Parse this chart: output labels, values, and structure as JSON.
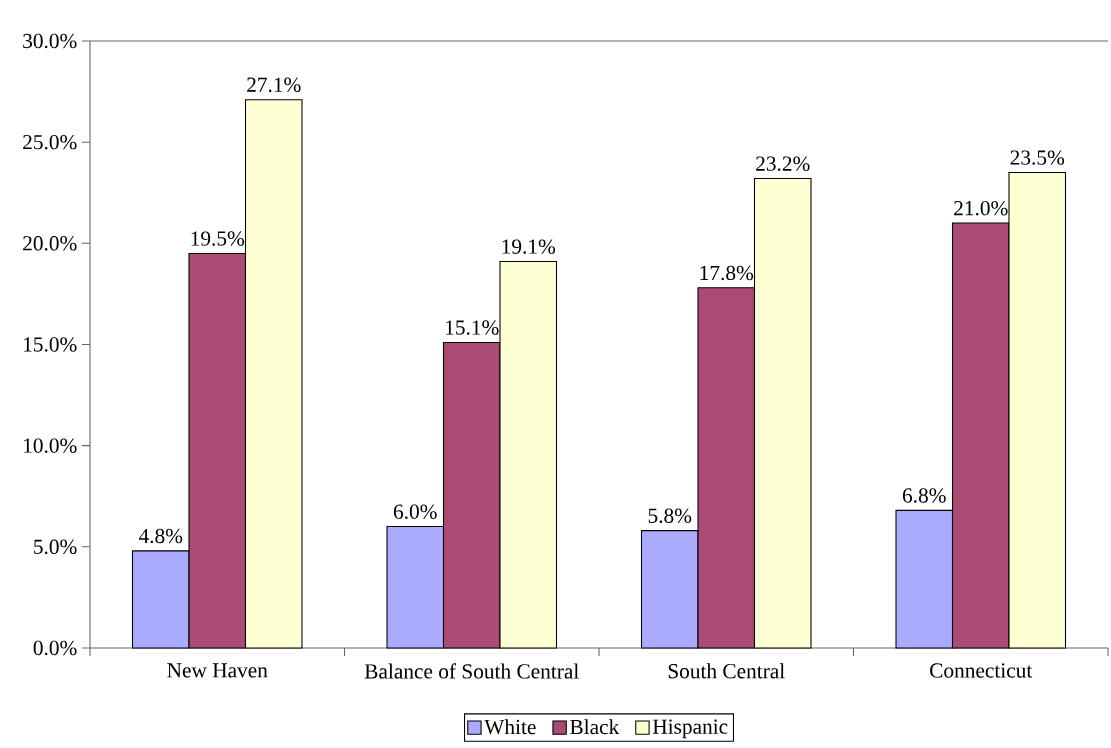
{
  "chart_data": {
    "type": "bar",
    "categories": [
      "New Haven",
      "Balance of South Central",
      "South Central",
      "Connecticut"
    ],
    "series": [
      {
        "name": "White",
        "color": "#aaaaff",
        "values": [
          4.8,
          6.0,
          5.8,
          6.8
        ],
        "value_labels": [
          "4.8%",
          "6.0%",
          "5.8%",
          "6.8%"
        ]
      },
      {
        "name": "Black",
        "color": "#aa4a75",
        "values": [
          19.5,
          15.1,
          17.8,
          21.0
        ],
        "value_labels": [
          "19.5%",
          "15.1%",
          "17.8%",
          "21.0%"
        ]
      },
      {
        "name": "Hispanic",
        "color": "#ffffd4",
        "values": [
          27.1,
          19.1,
          23.2,
          23.5
        ],
        "value_labels": [
          "27.1%",
          "19.1%",
          "23.2%",
          "23.5%"
        ]
      }
    ],
    "ylim": [
      0,
      30
    ],
    "yticks": [
      {
        "value": 0,
        "label": "0.0%"
      },
      {
        "value": 5,
        "label": "5.0%"
      },
      {
        "value": 10,
        "label": "10.0%"
      },
      {
        "value": 15,
        "label": "15.0%"
      },
      {
        "value": 20,
        "label": "20.0%"
      },
      {
        "value": 25,
        "label": "25.0%"
      },
      {
        "value": 30,
        "label": "30.0%"
      }
    ],
    "legend": "bottom"
  }
}
